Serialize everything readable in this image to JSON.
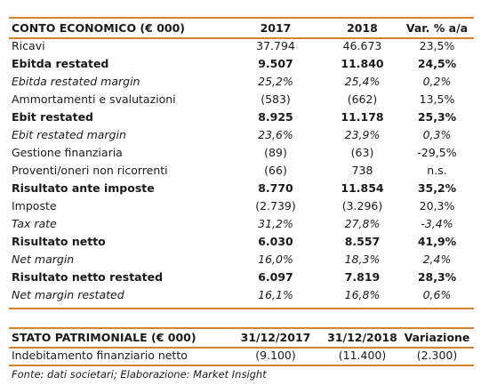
{
  "income_statement": {
    "header": {
      "label": "CONTO ECONOMICO (€ 000)",
      "col1": "2017",
      "col2": "2018",
      "col3": "Var. % a/a"
    },
    "rows": [
      {
        "label": "Ricavi",
        "v2017": "37.794",
        "v2018": "46.673",
        "var": "23,5%",
        "style": "normal"
      },
      {
        "label": "Ebitda restated",
        "v2017": "9.507",
        "v2018": "11.840",
        "var": "24,5%",
        "style": "bold"
      },
      {
        "label": "Ebitda restated margin",
        "v2017": "25,2%",
        "v2018": "25,4%",
        "var": "0,2%",
        "style": "italic"
      },
      {
        "label": "Ammortamenti e svalutazioni",
        "v2017": "(583)",
        "v2018": "(662)",
        "var": "13,5%",
        "style": "normal"
      },
      {
        "label": "Ebit restated",
        "v2017": "8.925",
        "v2018": "11.178",
        "var": "25,3%",
        "style": "bold"
      },
      {
        "label": "Ebit restated margin",
        "v2017": "23,6%",
        "v2018": "23,9%",
        "var": "0,3%",
        "style": "italic"
      },
      {
        "label": "Gestione finanziaria",
        "v2017": "(89)",
        "v2018": "(63)",
        "var": "-29,5%",
        "style": "normal"
      },
      {
        "label": "Proventi/oneri non ricorrenti",
        "v2017": "(66)",
        "v2018": "738",
        "var": "n.s.",
        "style": "normal"
      },
      {
        "label": "Risultato ante imposte",
        "v2017": "8.770",
        "v2018": "11.854",
        "var": "35,2%",
        "style": "bold"
      },
      {
        "label": "Imposte",
        "v2017": "(2.739)",
        "v2018": "(3.296)",
        "var": "20,3%",
        "style": "normal"
      },
      {
        "label": "Tax rate",
        "v2017": "31,2%",
        "v2018": "27,8%",
        "var": "-3,4%",
        "style": "italic"
      },
      {
        "label": "Risultato netto",
        "v2017": "6.030",
        "v2018": "8.557",
        "var": "41,9%",
        "style": "bold"
      },
      {
        "label": "Net margin",
        "v2017": "16,0%",
        "v2018": "18,3%",
        "var": "2,4%",
        "style": "italic"
      },
      {
        "label": "Risultato netto restated",
        "v2017": "6.097",
        "v2018": "7.819",
        "var": "28,3%",
        "style": "bold"
      },
      {
        "label": "Net margin restated",
        "v2017": "16,1%",
        "v2018": "16,8%",
        "var": "0,6%",
        "style": "italic"
      }
    ]
  },
  "balance_sheet": {
    "header": {
      "label": "STATO PATRIMONIALE (€ 000)",
      "col1": "31/12/2017",
      "col2": "31/12/2018",
      "col3": "Variazione"
    },
    "rows": [
      {
        "label": "Indebitamento finanziario netto",
        "v2017": "(9.100)",
        "v2018": "(11.400)",
        "var": "(2.300)",
        "style": "normal"
      }
    ]
  },
  "footnote": "Fonte: dati societari; Elaborazione: Market Insight",
  "colors": {
    "rule": "#d9822b",
    "text": "#1a1a1a"
  }
}
